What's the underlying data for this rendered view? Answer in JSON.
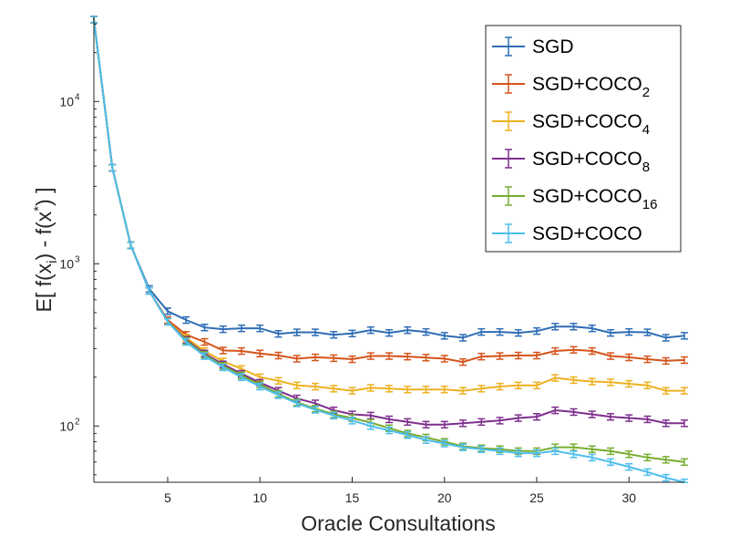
{
  "chart_data": {
    "type": "line",
    "title": "",
    "xlabel": "Oracle Consultations",
    "ylabel": "E[ f(x_i) - f(x^*) ]",
    "ylabel_parts": {
      "pre": "E[ f(x",
      "sub": "i",
      "mid": ") - f(x",
      "sup": "*",
      "post": ") ]"
    },
    "xlim": [
      1,
      33
    ],
    "ylim": [
      45,
      33000
    ],
    "yscale": "log",
    "grid": false,
    "legend_position": "top-right",
    "x_ticks": [
      5,
      10,
      15,
      20,
      25,
      30
    ],
    "y_ticks": [
      {
        "value": 100,
        "base": "10",
        "exp": "2"
      },
      {
        "value": 1000,
        "base": "10",
        "exp": "3"
      },
      {
        "value": 10000,
        "base": "10",
        "exp": "4"
      }
    ],
    "x": [
      1,
      2,
      3,
      4,
      5,
      6,
      7,
      8,
      9,
      10,
      11,
      12,
      13,
      14,
      15,
      16,
      17,
      18,
      19,
      20,
      21,
      22,
      23,
      24,
      25,
      26,
      27,
      28,
      29,
      30,
      31,
      32,
      33
    ],
    "series": [
      {
        "name": "SGD",
        "name_base": "SGD",
        "name_sub": "",
        "color": "#2E6DB5",
        "values": [
          32000,
          3900,
          1300,
          700,
          510,
          450,
          405,
          395,
          400,
          400,
          370,
          378,
          378,
          365,
          372,
          390,
          375,
          390,
          380,
          360,
          350,
          380,
          380,
          375,
          385,
          410,
          410,
          400,
          375,
          380,
          378,
          350,
          360
        ]
      },
      {
        "name": "SGD+COCO_2",
        "name_base": "SGD+COCO",
        "name_sub": "2",
        "color": "#D4541B",
        "values": [
          32000,
          3900,
          1300,
          680,
          450,
          365,
          330,
          292,
          290,
          280,
          272,
          260,
          265,
          262,
          258,
          270,
          270,
          268,
          264,
          260,
          248,
          268,
          270,
          272,
          272,
          290,
          295,
          290,
          270,
          265,
          258,
          252,
          255
        ]
      },
      {
        "name": "SGD+COCO_4",
        "name_base": "SGD+COCO",
        "name_sub": "4",
        "color": "#EDB120",
        "values": [
          32000,
          3900,
          1300,
          680,
          440,
          350,
          290,
          250,
          225,
          200,
          190,
          178,
          175,
          170,
          165,
          172,
          170,
          168,
          168,
          168,
          165,
          170,
          175,
          178,
          178,
          198,
          192,
          188,
          186,
          182,
          178,
          165,
          165
        ]
      },
      {
        "name": "SGD+COCO_8",
        "name_base": "SGD+COCO",
        "name_sub": "8",
        "color": "#7E2F8E",
        "values": [
          32000,
          3900,
          1300,
          680,
          440,
          340,
          280,
          240,
          210,
          185,
          165,
          148,
          138,
          125,
          118,
          116,
          110,
          106,
          102,
          102,
          104,
          106,
          108,
          112,
          114,
          125,
          122,
          118,
          114,
          112,
          110,
          104,
          104
        ]
      },
      {
        "name": "SGD+COCO_16",
        "name_base": "SGD+COCO",
        "name_sub": "16",
        "color": "#77AC30",
        "values": [
          32000,
          3900,
          1300,
          680,
          440,
          335,
          275,
          235,
          205,
          180,
          158,
          140,
          128,
          118,
          112,
          105,
          97,
          90,
          85,
          80,
          75,
          73,
          72,
          70,
          70,
          74,
          74,
          72,
          70,
          67,
          64,
          62,
          60
        ]
      },
      {
        "name": "SGD+COCO",
        "name_base": "SGD+COCO",
        "name_sub": "",
        "color": "#4DBEEE",
        "values": [
          32000,
          3900,
          1300,
          680,
          440,
          330,
          270,
          230,
          200,
          175,
          155,
          138,
          126,
          116,
          108,
          100,
          94,
          88,
          82,
          78,
          74,
          72,
          70,
          68,
          68,
          70,
          67,
          64,
          60,
          56,
          52,
          48,
          45
        ]
      }
    ]
  }
}
